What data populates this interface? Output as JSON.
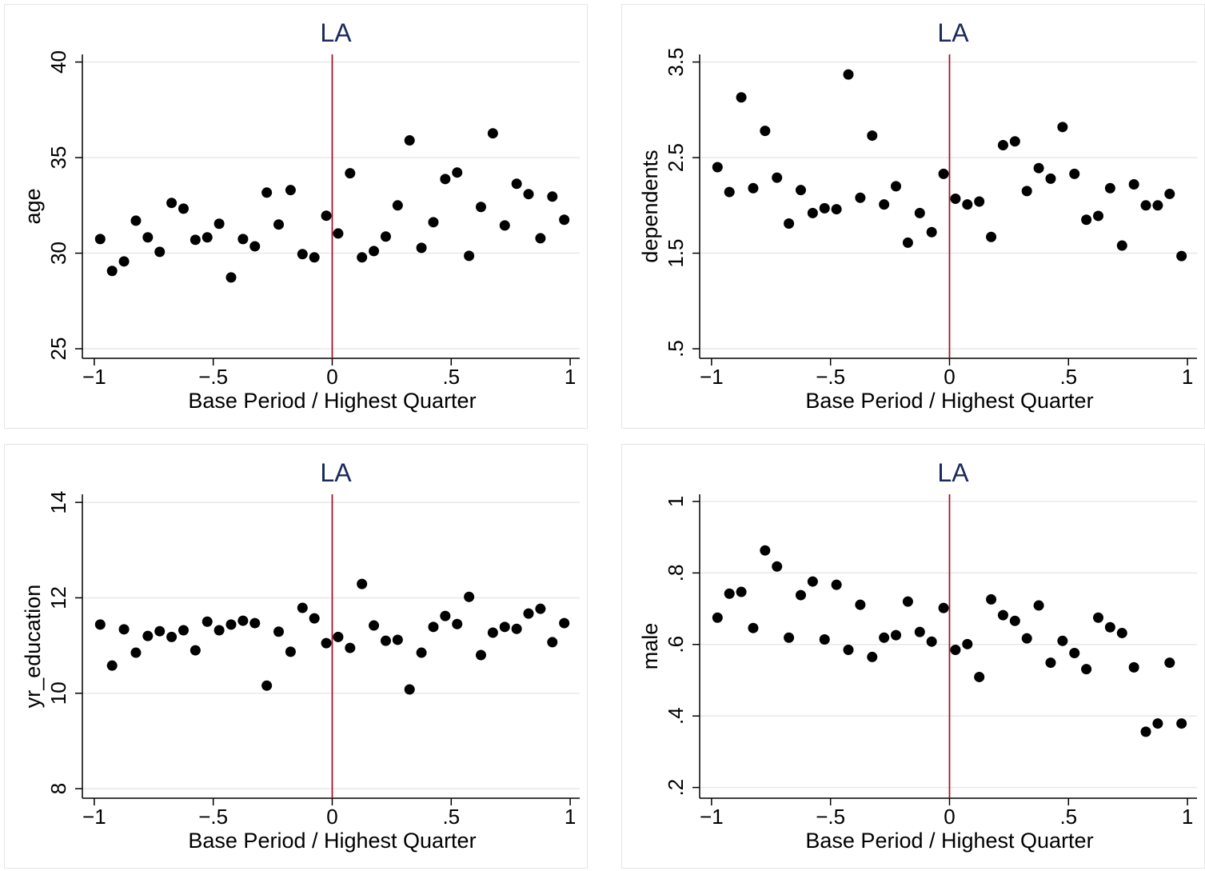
{
  "chart_data": [
    {
      "type": "scatter",
      "title": "LA",
      "x_label": "Base Period / Highest Quarter",
      "y_label": "age",
      "color": "#000000",
      "xline": 0,
      "xline_color": "#a3142b",
      "grid": true,
      "xlim": [
        -1.05,
        1.04
      ],
      "ylim": [
        24.5,
        40.4
      ],
      "xticks": [
        {
          "value": -1,
          "label": "−1"
        },
        {
          "value": -0.5,
          "label": "−.5"
        },
        0,
        {
          "value": 0.5,
          "label": ".5"
        },
        1
      ],
      "yticks": [
        25,
        30,
        35,
        40
      ],
      "x": [
        -0.975,
        -0.925,
        -0.875,
        -0.825,
        -0.775,
        -0.725,
        -0.675,
        -0.625,
        -0.575,
        -0.525,
        -0.475,
        -0.425,
        -0.375,
        -0.325,
        -0.275,
        -0.225,
        -0.175,
        -0.125,
        -0.075,
        -0.025,
        0.025,
        0.075,
        0.125,
        0.175,
        0.225,
        0.275,
        0.325,
        0.375,
        0.425,
        0.475,
        0.525,
        0.575,
        0.625,
        0.675,
        0.725,
        0.775,
        0.825,
        0.875,
        0.925,
        0.975
      ],
      "values": [
        30.74,
        29.07,
        29.57,
        31.7,
        30.83,
        30.07,
        32.63,
        32.33,
        30.7,
        30.83,
        31.54,
        28.73,
        30.74,
        30.36,
        33.17,
        31.5,
        33.3,
        29.95,
        29.78,
        31.96,
        31.03,
        34.18,
        29.78,
        30.11,
        30.87,
        32.5,
        35.9,
        30.28,
        31.62,
        33.88,
        34.22,
        29.86,
        32.42,
        36.27,
        31.45,
        33.63,
        33.09,
        30.78,
        32.96,
        31.75
      ]
    },
    {
      "type": "scatter",
      "title": "LA",
      "x_label": "Base Period / Highest Quarter",
      "y_label": "dependents",
      "color": "#000000",
      "xline": 0,
      "xline_color": "#a3142b",
      "grid": true,
      "xlim": [
        -1.05,
        1.04
      ],
      "ylim": [
        0.4,
        3.58
      ],
      "xticks": [
        {
          "value": -1,
          "label": "−1"
        },
        {
          "value": -0.5,
          "label": "−.5"
        },
        0,
        {
          "value": 0.5,
          "label": ".5"
        },
        1
      ],
      "yticks": [
        {
          "value": 0.5,
          "label": ".5"
        },
        1.5,
        2.5,
        3.5
      ],
      "x": [
        -0.975,
        -0.925,
        -0.875,
        -0.825,
        -0.775,
        -0.725,
        -0.675,
        -0.625,
        -0.575,
        -0.525,
        -0.475,
        -0.425,
        -0.375,
        -0.325,
        -0.275,
        -0.225,
        -0.175,
        -0.125,
        -0.075,
        -0.025,
        0.025,
        0.075,
        0.125,
        0.175,
        0.225,
        0.275,
        0.325,
        0.375,
        0.425,
        0.475,
        0.525,
        0.575,
        0.625,
        0.675,
        0.725,
        0.775,
        0.825,
        0.875,
        0.925,
        0.975
      ],
      "values": [
        2.4,
        2.14,
        3.13,
        2.18,
        2.78,
        2.29,
        1.81,
        2.16,
        1.92,
        1.97,
        1.96,
        3.37,
        2.08,
        2.73,
        2.01,
        2.2,
        1.61,
        1.92,
        1.72,
        2.33,
        2.07,
        2.01,
        2.04,
        1.67,
        2.63,
        2.67,
        2.15,
        2.39,
        2.28,
        2.82,
        2.33,
        1.85,
        1.89,
        2.18,
        1.58,
        2.22,
        2.0,
        2.0,
        2.12,
        1.47
      ]
    },
    {
      "type": "scatter",
      "title": "LA",
      "x_label": "Base Period / Highest Quarter",
      "y_label": "yr_education",
      "color": "#000000",
      "xline": 0,
      "xline_color": "#a3142b",
      "grid": true,
      "xlim": [
        -1.05,
        1.04
      ],
      "ylim": [
        7.8,
        14.17
      ],
      "xticks": [
        {
          "value": -1,
          "label": "−1"
        },
        {
          "value": -0.5,
          "label": "−.5"
        },
        0,
        {
          "value": 0.5,
          "label": ".5"
        },
        1
      ],
      "yticks": [
        8,
        10,
        12,
        14
      ],
      "x": [
        -0.975,
        -0.925,
        -0.875,
        -0.825,
        -0.775,
        -0.725,
        -0.675,
        -0.625,
        -0.575,
        -0.525,
        -0.475,
        -0.425,
        -0.375,
        -0.325,
        -0.275,
        -0.225,
        -0.175,
        -0.125,
        -0.075,
        -0.025,
        0.025,
        0.075,
        0.125,
        0.175,
        0.225,
        0.275,
        0.325,
        0.375,
        0.425,
        0.475,
        0.525,
        0.575,
        0.625,
        0.675,
        0.725,
        0.775,
        0.825,
        0.875,
        0.925,
        0.975
      ],
      "values": [
        11.44,
        10.58,
        11.34,
        10.85,
        11.2,
        11.3,
        11.18,
        11.32,
        10.9,
        11.5,
        11.32,
        11.44,
        11.52,
        11.47,
        10.16,
        11.29,
        10.87,
        11.79,
        11.57,
        11.05,
        11.18,
        10.95,
        12.29,
        11.42,
        11.1,
        11.12,
        10.08,
        10.85,
        11.39,
        11.62,
        11.45,
        12.02,
        10.8,
        11.27,
        11.39,
        11.35,
        11.67,
        11.77,
        11.07,
        11.47
      ]
    },
    {
      "type": "scatter",
      "title": "LA",
      "x_label": "Base Period / Highest Quarter",
      "y_label": "male",
      "color": "#000000",
      "xline": 0,
      "xline_color": "#a3142b",
      "grid": true,
      "xlim": [
        -1.05,
        1.04
      ],
      "ylim": [
        0.17,
        1.02
      ],
      "xticks": [
        {
          "value": -1,
          "label": "−1"
        },
        {
          "value": -0.5,
          "label": "−.5"
        },
        0,
        {
          "value": 0.5,
          "label": ".5"
        },
        1
      ],
      "yticks": [
        {
          "value": 0.2,
          "label": ".2"
        },
        {
          "value": 0.4,
          "label": ".4"
        },
        {
          "value": 0.6,
          "label": ".6"
        },
        {
          "value": 0.8,
          "label": ".8"
        },
        1
      ],
      "x": [
        -0.975,
        -0.925,
        -0.875,
        -0.825,
        -0.775,
        -0.725,
        -0.675,
        -0.625,
        -0.575,
        -0.525,
        -0.475,
        -0.425,
        -0.375,
        -0.325,
        -0.275,
        -0.225,
        -0.175,
        -0.125,
        -0.075,
        -0.025,
        0.025,
        0.075,
        0.125,
        0.175,
        0.225,
        0.275,
        0.325,
        0.375,
        0.425,
        0.475,
        0.525,
        0.575,
        0.625,
        0.675,
        0.725,
        0.775,
        0.825,
        0.875,
        0.925,
        0.975
      ],
      "values": [
        0.675,
        0.742,
        0.747,
        0.646,
        0.863,
        0.818,
        0.619,
        0.738,
        0.776,
        0.614,
        0.767,
        0.585,
        0.711,
        0.565,
        0.619,
        0.626,
        0.72,
        0.635,
        0.608,
        0.702,
        0.585,
        0.601,
        0.509,
        0.726,
        0.682,
        0.666,
        0.617,
        0.709,
        0.549,
        0.61,
        0.576,
        0.531,
        0.675,
        0.648,
        0.632,
        0.536,
        0.356,
        0.379,
        0.549,
        0.379
      ]
    }
  ]
}
